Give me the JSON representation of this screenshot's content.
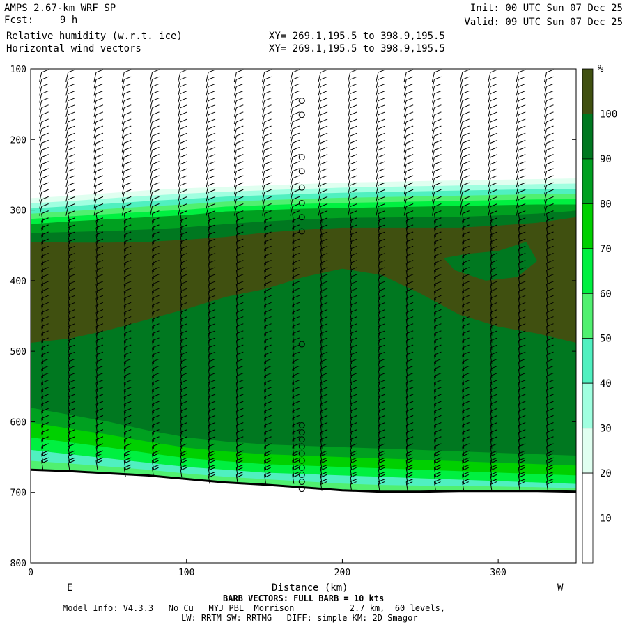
{
  "header": {
    "model_title": "AMPS 2.67-km WRF SP",
    "fcst_label": "Fcst:",
    "fcst_value": "9 h",
    "field1": "Relative humidity (w.r.t. ice)",
    "field2": "Horizontal wind vectors",
    "xy1": "XY= 269.1,195.5 to 398.9,195.5",
    "xy2": "XY= 269.1,195.5 to 398.9,195.5",
    "init": "Init: 00 UTC Sun 07 Dec 25",
    "valid": "Valid: 09 UTC Sun 07 Dec 25"
  },
  "chart_data": {
    "type": "heatmap",
    "title": "Relative humidity (w.r.t. ice)",
    "xlabel": "Distance (km)",
    "ylabel": "",
    "xlim": [
      0,
      350
    ],
    "ylim": [
      800,
      100
    ],
    "x_ticks": [
      "0",
      "100",
      "200",
      "300"
    ],
    "y_ticks": [
      "100",
      "200",
      "300",
      "400",
      "500",
      "600",
      "700",
      "800"
    ],
    "x_end_labels": {
      "left": "E",
      "right": "W"
    },
    "colorbar": {
      "unit": "%",
      "levels": [
        10,
        20,
        30,
        40,
        50,
        60,
        70,
        80,
        90,
        100
      ],
      "colors": [
        "#ffffff",
        "#ffffff",
        "#e0fff0",
        "#a0ffe0",
        "#50f0c0",
        "#50f070",
        "#00f040",
        "#00d000",
        "#00a020",
        "#007820",
        "#405010"
      ]
    },
    "rh_boundaries": {
      "x": [
        0,
        25,
        50,
        75,
        100,
        125,
        150,
        175,
        200,
        225,
        250,
        275,
        300,
        325,
        350
      ],
      "rh30_top": [
        283,
        280,
        276,
        272,
        269,
        267,
        265,
        263,
        261,
        260,
        259,
        258,
        257,
        256,
        255
      ],
      "rh80_top": [
        320,
        316,
        313,
        310,
        307,
        302,
        300,
        298,
        297,
        296,
        295,
        294,
        293,
        292,
        292
      ],
      "rh100_top": [
        345,
        346,
        346,
        345,
        342,
        338,
        332,
        328,
        325,
        325,
        325,
        325,
        322,
        318,
        310
      ],
      "rh100_bottom": [
        488,
        482,
        470,
        455,
        440,
        423,
        412,
        395,
        383,
        392,
        418,
        448,
        465,
        475,
        488
      ],
      "rh80_bottom": [
        580,
        590,
        600,
        612,
        622,
        628,
        632,
        634,
        636,
        638,
        640,
        642,
        644,
        646,
        648
      ],
      "rh60_bottom": [
        640,
        646,
        652,
        658,
        664,
        668,
        672,
        674,
        676,
        678,
        680,
        682,
        684,
        686,
        688
      ]
    },
    "moist_pocket": {
      "x": [
        265,
        280,
        300,
        318,
        325,
        312,
        292,
        272
      ],
      "p": [
        368,
        362,
        358,
        345,
        372,
        395,
        400,
        385
      ]
    },
    "terrain_pressure": {
      "x": [
        0,
        25,
        50,
        75,
        100,
        125,
        150,
        175,
        200,
        225,
        250,
        275,
        300,
        325,
        350
      ],
      "p": [
        668,
        670,
        673,
        676,
        681,
        686,
        689,
        693,
        697,
        699,
        699,
        698,
        698,
        698,
        699
      ]
    },
    "barbs": {
      "full_barb_kts": 10,
      "columns_x": [
        7,
        24,
        42,
        60,
        78,
        96,
        114,
        132,
        150,
        168,
        186,
        205,
        223,
        241,
        259,
        277,
        295,
        313,
        331
      ],
      "calm_column_x": 174
    },
    "footer": {
      "barb_note": "BARB VECTORS: FULL BARB = 10 kts",
      "model_info": "Model Info: V4.3.3   No Cu   MYJ PBL  Morrison           2.7 km,  60 levels,",
      "model_info2": "LW: RRTM SW: RRTMG   DIFF: simple KM: 2D Smagor"
    }
  }
}
